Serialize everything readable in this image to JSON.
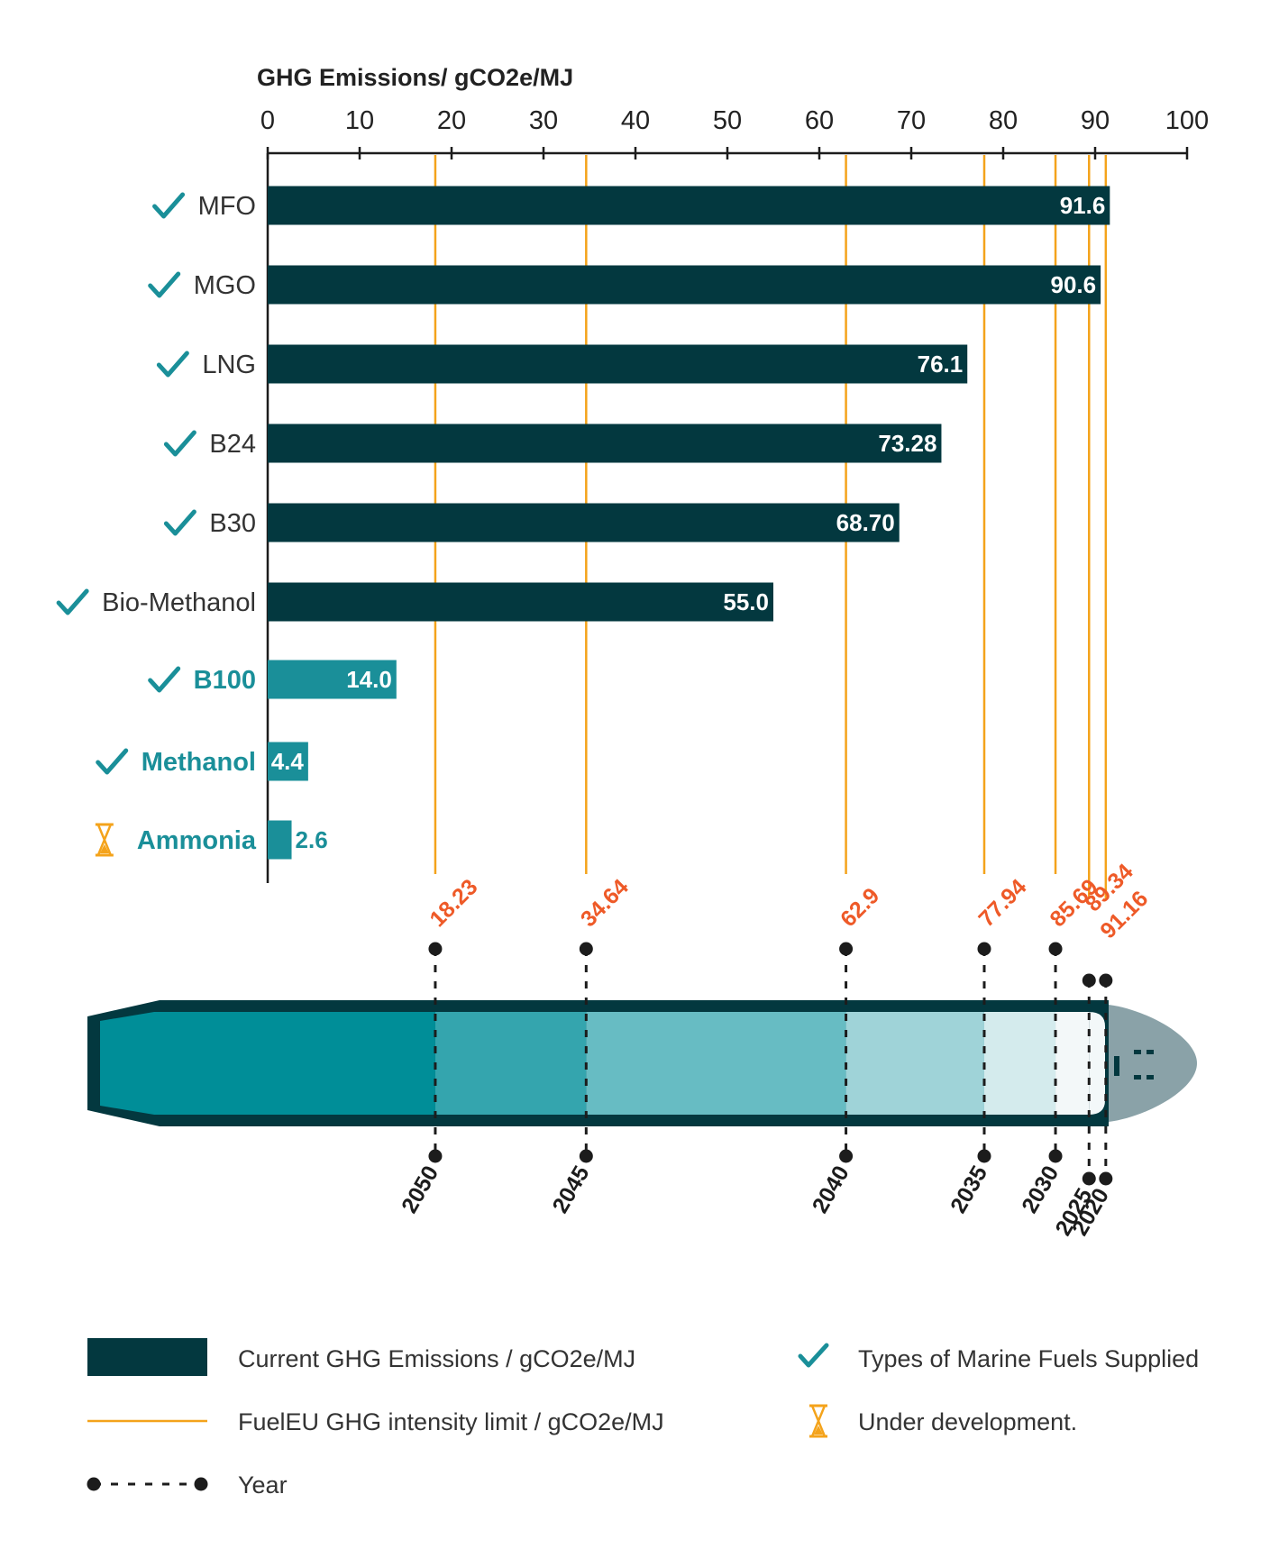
{
  "chart_data": {
    "type": "bar",
    "title": "",
    "xlabel": "GHG Emissions/ gCO2e/MJ",
    "xlim": [
      0,
      100
    ],
    "x_ticks": [
      "0",
      "10",
      "20",
      "30",
      "40",
      "50",
      "60",
      "70",
      "80",
      "90",
      "100"
    ],
    "categories": [
      "MFO",
      "MGO",
      "LNG",
      "B24",
      "B30",
      "Bio-Methanol",
      "B100",
      "Methanol",
      "Ammonia"
    ],
    "values": [
      91.6,
      90.6,
      76.1,
      73.28,
      68.7,
      55.0,
      14.0,
      4.4,
      2.6
    ],
    "value_labels": [
      "91.6",
      "90.6",
      "76.1",
      "73.28",
      "68.70",
      "55.0",
      "14.0",
      "4.4",
      "2.6"
    ],
    "category_status": [
      "supplied",
      "supplied",
      "supplied",
      "supplied",
      "supplied",
      "supplied",
      "supplied",
      "supplied",
      "under-development"
    ],
    "category_highlight": [
      false,
      false,
      false,
      false,
      false,
      false,
      true,
      true,
      true
    ],
    "limits": [
      {
        "year": "2020",
        "value": 91.16,
        "label": "91.16"
      },
      {
        "year": "2025",
        "value": 89.34,
        "label": "89.34"
      },
      {
        "year": "2030",
        "value": 85.69,
        "label": "85.69"
      },
      {
        "year": "2035",
        "value": 77.94,
        "label": "77.94"
      },
      {
        "year": "2040",
        "value": 62.9,
        "label": "62.9"
      },
      {
        "year": "2045",
        "value": 34.64,
        "label": "34.64"
      },
      {
        "year": "2050",
        "value": 18.23,
        "label": "18.23"
      }
    ],
    "colors": {
      "bar_dark": "#03383f",
      "bar_teal": "#1a8f99",
      "limit_line": "#f4a31b",
      "limit_label": "#ee5a28",
      "check": "#1a8f99",
      "hourglass": "#f4a31b",
      "ship_hull": "#03383f",
      "ship_bow": "#8aa2a8",
      "ship_segments": [
        "#f3f8f9",
        "#d4ebed",
        "#9fd3d8",
        "#67bcc3",
        "#34a5ae",
        "#008e98"
      ]
    }
  },
  "legend": {
    "bars_label": "Current GHG Emissions / gCO2e/MJ",
    "line_label": "FuelEU GHG intensity limit / gCO2e/MJ",
    "year_label": "Year",
    "check_label": "Types of Marine Fuels Supplied",
    "hourglass_label": "Under development."
  }
}
